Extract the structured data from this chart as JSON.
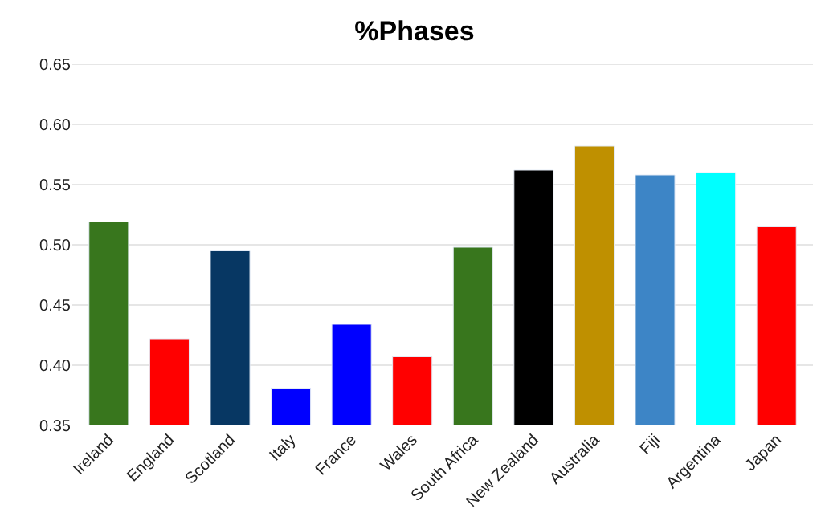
{
  "chart_data": {
    "type": "bar",
    "title": "%Phases",
    "categories": [
      "Ireland",
      "England",
      "Scotland",
      "Italy",
      "France",
      "Wales",
      "South Africa",
      "New Zealand",
      "Australia",
      "Fiji",
      "Argentina",
      "Japan"
    ],
    "values": [
      0.519,
      0.422,
      0.495,
      0.381,
      0.434,
      0.407,
      0.498,
      0.562,
      0.582,
      0.558,
      0.56,
      0.515
    ],
    "colors": [
      "#38761d",
      "#ff0000",
      "#073763",
      "#0000ff",
      "#0000ff",
      "#ff0000",
      "#38761d",
      "#000000",
      "#bf9000",
      "#3d85c6",
      "#00ffff",
      "#ff0000"
    ],
    "ylim": [
      0.35,
      0.65
    ],
    "yticks": [
      {
        "value": 0.35,
        "label": "0.35"
      },
      {
        "value": 0.4,
        "label": "0.40"
      },
      {
        "value": 0.45,
        "label": "0.45"
      },
      {
        "value": 0.5,
        "label": "0.50"
      },
      {
        "value": 0.55,
        "label": "0.55"
      },
      {
        "value": 0.6,
        "label": "0.60"
      },
      {
        "value": 0.65,
        "label": "0.65"
      }
    ],
    "grid": "y"
  }
}
